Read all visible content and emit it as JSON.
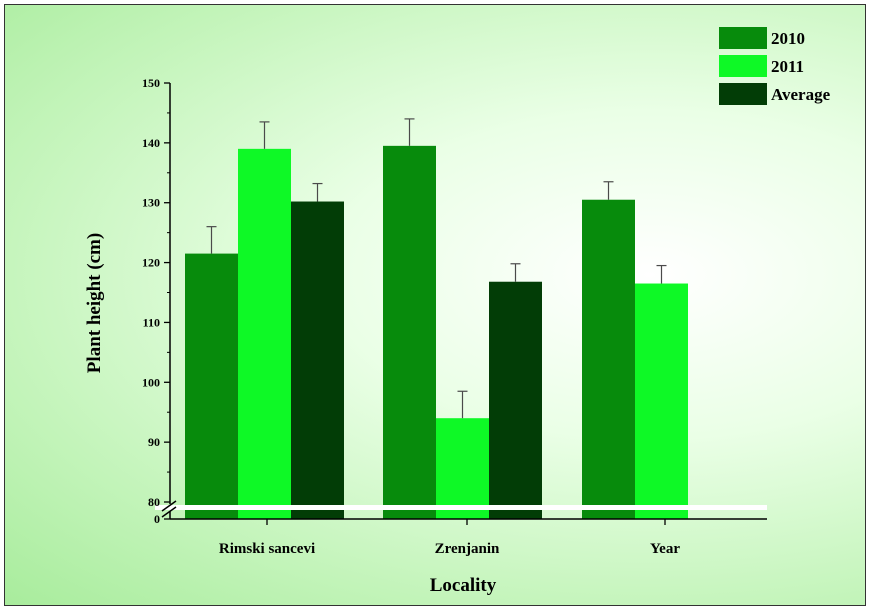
{
  "chart_data": {
    "type": "bar",
    "xlabel": "Locality",
    "ylabel": "Plant height (cm)",
    "ylim": [
      80,
      150
    ],
    "broken_axis": {
      "lower_tick": "0",
      "upper_start": 80
    },
    "yticks": [
      "150",
      "140",
      "130",
      "120",
      "110",
      "100",
      "90",
      "80"
    ],
    "categories": [
      "Rimski sancevi",
      "Zrenjanin",
      "Year"
    ],
    "legend_position": "top-right",
    "series": [
      {
        "name": "2010",
        "color": "#078b0c",
        "values": [
          121.5,
          139.5,
          130.5
        ],
        "errors": [
          4.5,
          4.5,
          3.0
        ]
      },
      {
        "name": "2011",
        "color": "#0ef926",
        "values": [
          139.0,
          94.0,
          116.5
        ],
        "errors": [
          4.5,
          4.5,
          3.0
        ]
      },
      {
        "name": "Average",
        "color": "#023d06",
        "values": [
          130.2,
          116.8,
          null
        ],
        "errors": [
          3.0,
          3.0,
          null
        ]
      }
    ]
  }
}
